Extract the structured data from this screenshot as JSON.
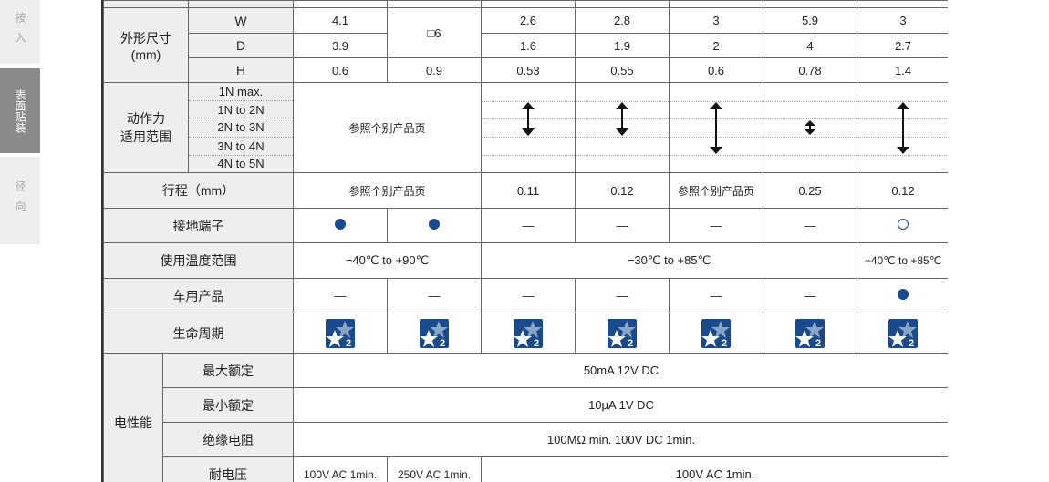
{
  "sidebar": {
    "tabs": [
      {
        "label": "按入"
      },
      {
        "label": "表面贴装",
        "active": true
      },
      {
        "label": "径向"
      }
    ]
  },
  "colors": {
    "accent": "#1a4a8a",
    "label_bg": "#eeeeee",
    "active_tab": "#8a8a8a"
  },
  "table": {
    "dims": {
      "label": "外形尺寸",
      "unit": "(mm)",
      "W": {
        "label": "W",
        "values": [
          "4.1",
          "□6",
          "2.6",
          "2.8",
          "3",
          "5.9",
          "3"
        ]
      },
      "D": {
        "label": "D",
        "values": [
          "3.9",
          "1.6",
          "1.9",
          "2",
          "4",
          "2.7"
        ]
      },
      "H": {
        "label": "H",
        "values": [
          "0.6",
          "0.9",
          "0.53",
          "0.55",
          "0.6",
          "0.78",
          "1.4"
        ]
      }
    },
    "force": {
      "label1": "动作力",
      "label2": "适用范围",
      "levels": [
        "1N max.",
        "1N to 2N",
        "2N to 3N",
        "3N to 4N",
        "4N to 5N"
      ],
      "merged": "参照个别产品页",
      "ranges": [
        [
          "1N to 2N",
          "2N to 3N"
        ],
        [
          "1N to 2N",
          "2N to 3N"
        ],
        [
          "1N to 2N",
          "3N to 4N"
        ],
        [
          "2N to 3N",
          "2N to 3N"
        ],
        [
          "1N to 2N",
          "3N to 4N"
        ]
      ]
    },
    "stroke": {
      "label": "行程（mm）",
      "values": [
        "参照个别产品页",
        "0.11",
        "0.12",
        "参照个别产品页",
        "0.25",
        "0.12"
      ]
    },
    "ground": {
      "label": "接地端子",
      "values": [
        "filled",
        "filled",
        "—",
        "—",
        "—",
        "—",
        "open"
      ]
    },
    "temp": {
      "label": "使用温度范围",
      "values": [
        "−40℃ to +90℃",
        "−30℃ to +85℃",
        "−40℃ to +85℃"
      ]
    },
    "auto": {
      "label": "车用产品",
      "values": [
        "—",
        "—",
        "—",
        "—",
        "—",
        "—",
        "filled"
      ]
    },
    "life": {
      "label": "生命周期",
      "icon": "lifecycle-star-2-icon",
      "badge": "2"
    },
    "elec": {
      "label": "电性能",
      "max": {
        "label": "最大额定",
        "value": "50mA 12V  DC"
      },
      "min": {
        "label": "最小额定",
        "value": "10μA 1V DC"
      },
      "ins": {
        "label": "绝缘电阻",
        "value": "100MΩ min. 100V DC 1min."
      },
      "wv": {
        "label": "耐电压",
        "values": [
          "100V AC  1min.",
          "250V AC 1min.",
          "100V AC  1min."
        ]
      }
    }
  }
}
